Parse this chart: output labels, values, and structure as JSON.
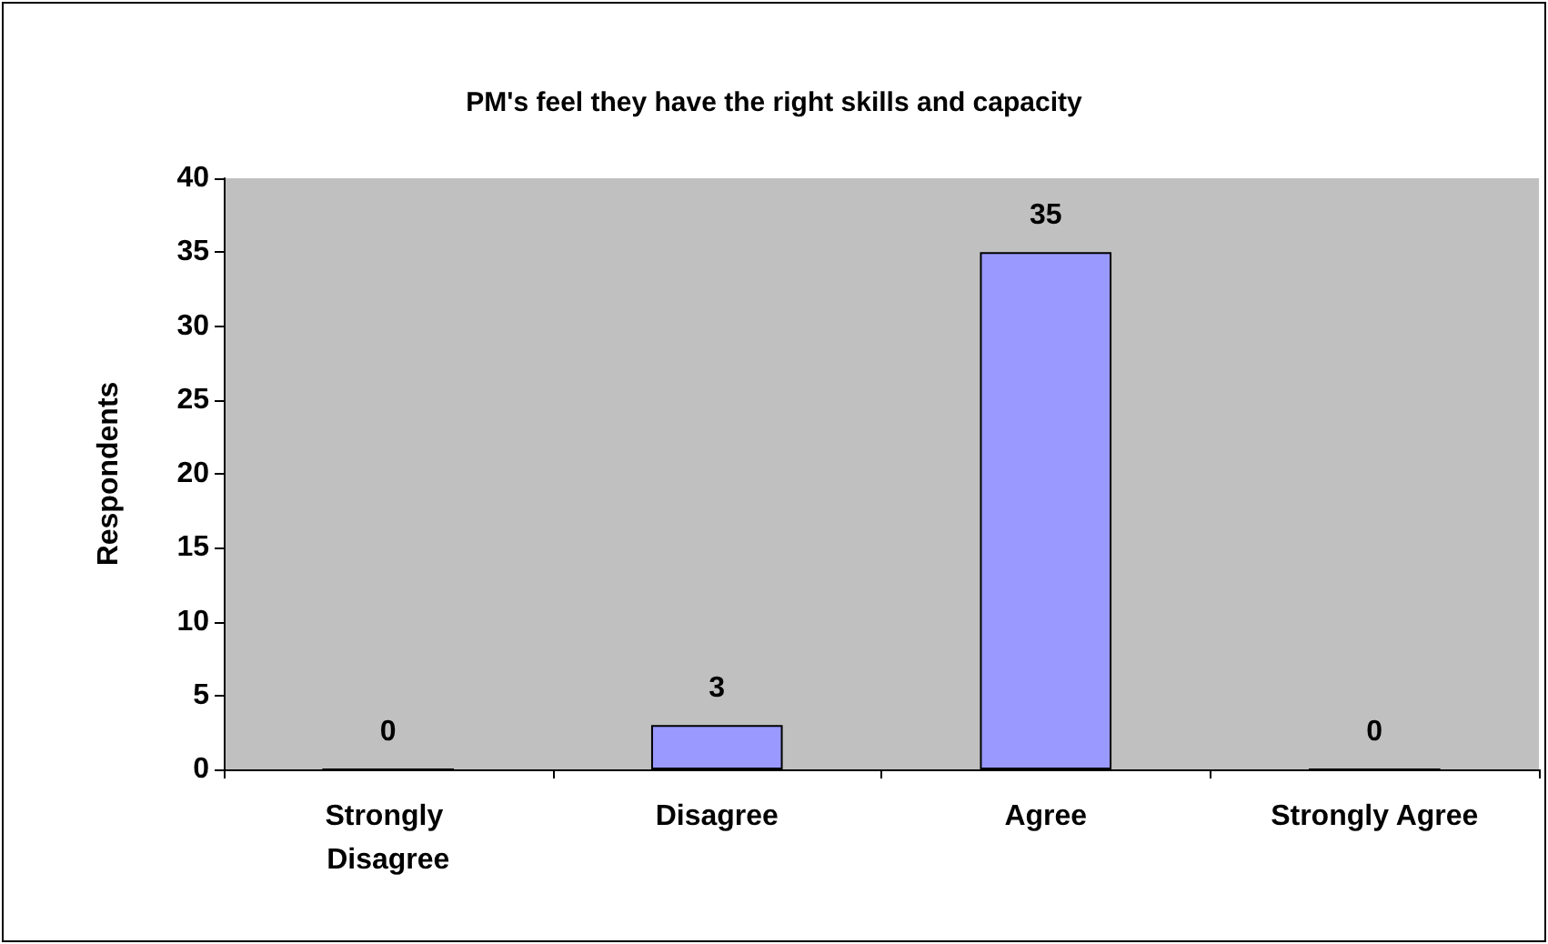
{
  "chart_data": {
    "type": "bar",
    "title": "PM's feel they have the right skills and capacity",
    "ylabel": "Respondents",
    "categories": [
      "Strongly Disagree",
      "Disagree",
      "Agree",
      "Strongly Agree"
    ],
    "values": [
      0,
      3,
      35,
      0
    ],
    "color": "#9999ff",
    "ylim": [
      0,
      40
    ],
    "yticks": [
      0,
      5,
      10,
      15,
      20,
      25,
      30,
      35,
      40
    ],
    "grid": false,
    "data_labels": true
  }
}
